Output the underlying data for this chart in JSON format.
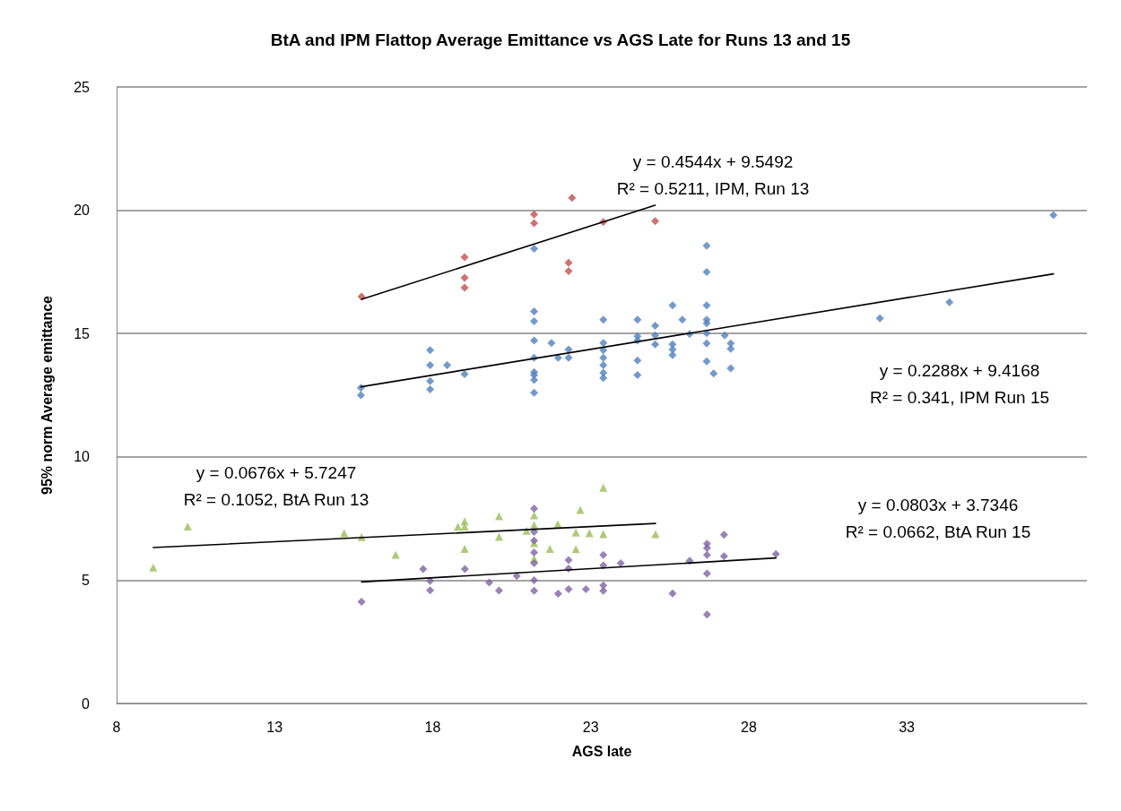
{
  "chart_data": {
    "type": "scatter",
    "title": "BtA and IPM Flattop Average Emittance vs AGS Late for Runs 13 and 15",
    "xlabel": "AGS late",
    "ylabel": "95% norm Average emittance",
    "xlim": [
      8,
      38.7
    ],
    "xticks": [
      8,
      13,
      18,
      23,
      28,
      33
    ],
    "ylim": [
      0,
      25
    ],
    "yticks": [
      0,
      5,
      10,
      15,
      20,
      25
    ],
    "grid": "y",
    "marker": "diamond",
    "series": [
      {
        "color": "#4f81bd",
        "x": [
          15.73,
          15.73,
          17.92,
          17.92,
          17.92,
          17.92,
          18.46,
          19.01,
          21.21,
          21.21,
          21.21,
          21.21,
          21.21,
          21.21,
          21.21,
          21.21,
          21.21,
          21.76,
          21.97,
          22.3,
          22.3,
          23.4,
          23.4,
          23.4,
          23.4,
          23.4,
          23.4,
          23.4,
          24.48,
          24.48,
          24.48,
          24.48,
          24.48,
          25.04,
          25.04,
          25.04,
          25.59,
          25.59,
          25.59,
          25.59,
          25.9,
          26.13,
          26.67,
          26.67,
          26.67,
          26.67,
          26.67,
          26.67,
          26.67,
          26.67,
          26.89,
          27.24,
          27.43,
          27.43,
          27.43,
          32.15,
          34.35,
          37.64
        ],
        "values": [
          12.8,
          12.5,
          14.33,
          13.72,
          13.07,
          12.74,
          13.72,
          13.35,
          18.44,
          15.9,
          15.5,
          14.72,
          14.02,
          13.44,
          13.32,
          13.12,
          12.6,
          14.62,
          14.02,
          14.35,
          14.02,
          15.56,
          14.62,
          14.33,
          14.02,
          13.72,
          13.41,
          13.2,
          15.56,
          14.89,
          14.72,
          13.91,
          13.32,
          15.32,
          14.93,
          14.56,
          16.14,
          14.56,
          14.35,
          14.13,
          15.56,
          14.98,
          18.56,
          17.5,
          16.14,
          15.56,
          15.42,
          15.02,
          14.6,
          13.87,
          13.38,
          14.93,
          14.6,
          14.38,
          13.59,
          15.62,
          16.27,
          19.8
        ]
      },
      {
        "color": "#c0504d",
        "x": [
          15.75,
          19.01,
          19.01,
          19.01,
          21.21,
          21.21,
          22.41,
          22.3,
          22.3,
          23.4,
          25.04
        ],
        "values": [
          16.5,
          18.1,
          17.26,
          16.86,
          19.83,
          19.48,
          20.5,
          17.87,
          17.53,
          19.52,
          19.56
        ]
      },
      {
        "color": "#9bbb59",
        "marker": "triangle",
        "x": [
          9.16,
          10.25,
          15.2,
          15.75,
          16.83,
          18.8,
          19.01,
          19.01,
          19.01,
          20.1,
          20.1,
          20.97,
          21.21,
          21.21,
          21.21,
          21.21,
          21.71,
          21.96,
          22.53,
          22.53,
          22.67,
          22.96,
          23.4,
          23.4,
          25.05
        ],
        "values": [
          5.51,
          7.18,
          6.9,
          6.75,
          6.03,
          7.17,
          7.39,
          7.18,
          6.27,
          7.59,
          6.76,
          7.0,
          7.63,
          7.23,
          6.5,
          5.87,
          6.27,
          7.27,
          6.93,
          6.26,
          7.85,
          6.9,
          8.75,
          6.87,
          6.87
        ]
      },
      {
        "color": "#8064a2",
        "x": [
          15.75,
          17.7,
          17.92,
          17.92,
          19.02,
          19.79,
          20.1,
          20.66,
          21.21,
          21.21,
          21.21,
          21.21,
          21.21,
          21.21,
          21.21,
          21.97,
          22.3,
          22.3,
          22.3,
          22.85,
          23.4,
          23.4,
          23.4,
          23.4,
          23.95,
          25.59,
          26.13,
          26.68,
          26.68,
          26.68,
          26.68,
          26.68,
          27.22,
          27.22,
          28.86
        ],
        "values": [
          4.12,
          5.45,
          4.97,
          4.59,
          5.45,
          4.91,
          4.58,
          5.17,
          7.9,
          6.96,
          6.6,
          6.12,
          5.69,
          5.0,
          4.57,
          4.45,
          5.81,
          5.47,
          4.63,
          4.63,
          6.02,
          5.6,
          4.79,
          4.57,
          5.69,
          4.46,
          5.79,
          6.48,
          6.3,
          6.02,
          5.27,
          3.61,
          6.84,
          5.97,
          6.06
        ]
      },
      {
        "type": "line",
        "color": "#000000",
        "marker": "none",
        "x": [
          15.75,
          25.04
        ],
        "values": [
          16.39,
          20.2
        ]
      },
      {
        "type": "line",
        "color": "#000000",
        "marker": "none",
        "x": [
          15.73,
          37.64
        ],
        "values": [
          12.84,
          17.42
        ]
      },
      {
        "type": "line",
        "color": "#000000",
        "marker": "none",
        "x": [
          9.16,
          25.05
        ],
        "values": [
          6.32,
          7.3
        ]
      },
      {
        "type": "line",
        "color": "#000000",
        "marker": "none",
        "x": [
          15.75,
          28.86
        ],
        "values": [
          4.93,
          5.9
        ]
      }
    ],
    "annotations": [
      "y = 0.4544x + 9.5492\nR² = 0.5211, IPM, Run 13",
      "y = 0.2288x + 9.4168\nR² = 0.341, IPM Run 15",
      "y = 0.0676x + 5.7247\nR² = 0.1052, BtA Run 13",
      "y = 0.0803x + 3.7346\nR² = 0.0662, BtA Run 15"
    ]
  }
}
